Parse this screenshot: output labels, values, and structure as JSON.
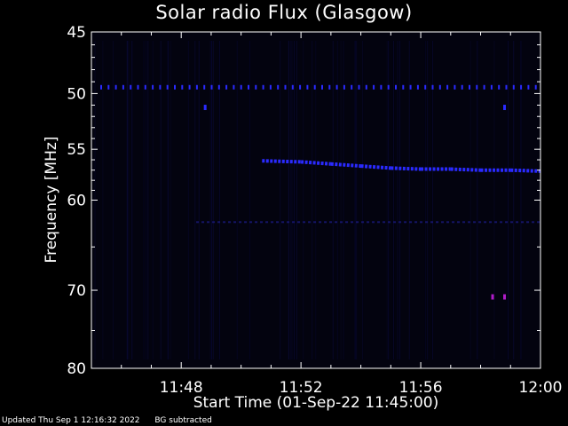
{
  "chart_data": {
    "type": "heatmap",
    "title": "Solar radio Flux (Glasgow)",
    "xlabel": "Start Time (01-Sep-22 11:45:00)",
    "ylabel": "Frequency [MHz]",
    "x_unit": "minutes after 11:45:00",
    "xlim": [
      0,
      15
    ],
    "ylim": [
      80,
      45
    ],
    "xticks": [
      {
        "value": 3,
        "label": "11:48"
      },
      {
        "value": 7,
        "label": "11:52"
      },
      {
        "value": 11,
        "label": "11:56"
      },
      {
        "value": 15,
        "label": "12:00"
      }
    ],
    "yticks": [
      {
        "value": 45,
        "label": "45"
      },
      {
        "value": 50,
        "label": "50"
      },
      {
        "value": 55,
        "label": "55"
      },
      {
        "value": 60,
        "label": "60"
      },
      {
        "value": 70,
        "label": "70"
      },
      {
        "value": 80,
        "label": "80"
      }
    ],
    "y_scale": "log",
    "colors": {
      "background": "#000000",
      "signal": "#2a2aff",
      "hot": "#b01cc8",
      "axes": "#ffffff"
    },
    "features": {
      "interference_line": {
        "freq_mhz": 49.5,
        "x_range": [
          0,
          15
        ]
      },
      "drifting_emission": [
        [
          5.7,
          56.1
        ],
        [
          7,
          56.2
        ],
        [
          8,
          56.4
        ],
        [
          9,
          56.6
        ],
        [
          10,
          56.8
        ],
        [
          11,
          56.9
        ],
        [
          12,
          56.9
        ],
        [
          13,
          57.0
        ],
        [
          14,
          57.0
        ],
        [
          15,
          57.1
        ]
      ],
      "weak_band": {
        "freq_mhz": 62.3,
        "x_range": [
          3.5,
          15
        ]
      },
      "spots": [
        {
          "x": 3.8,
          "freq": 51.2
        },
        {
          "x": 13.8,
          "freq": 51.2
        },
        {
          "x": 13.4,
          "freq": 70.8,
          "hot": true
        },
        {
          "x": 13.8,
          "freq": 70.8,
          "hot": true
        }
      ]
    }
  },
  "footer": {
    "updated": "Updated Thu Sep  1 12:16:32 2022",
    "note": "BG subtracted"
  }
}
